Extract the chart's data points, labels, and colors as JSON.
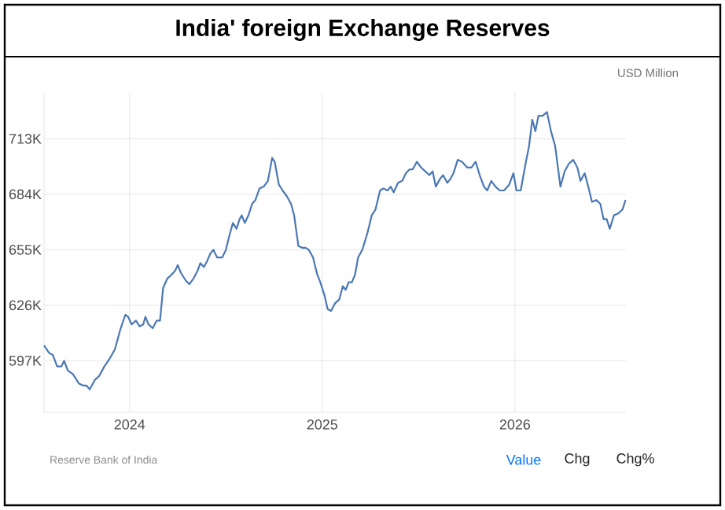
{
  "chart_data": {
    "type": "line",
    "title": "India' foreign Exchange Reserves",
    "ylabel": "USD Million",
    "x": [
      2023.556,
      2023.583,
      2023.602,
      2023.624,
      2023.646,
      2023.66,
      2023.679,
      2023.706,
      2023.738,
      2023.76,
      2023.777,
      2023.793,
      2023.82,
      2023.842,
      2023.869,
      2023.896,
      2023.924,
      2023.951,
      2023.978,
      2023.992,
      2024.011,
      2024.033,
      2024.052,
      2024.071,
      2024.082,
      2024.098,
      2024.12,
      2024.141,
      2024.158,
      2024.174,
      2024.196,
      2024.218,
      2024.236,
      2024.25,
      2024.266,
      2024.291,
      2024.31,
      2024.332,
      2024.353,
      2024.367,
      2024.386,
      2024.402,
      2024.419,
      2024.435,
      2024.454,
      2024.481,
      2024.5,
      2024.517,
      2024.536,
      2024.555,
      2024.571,
      2024.582,
      2024.598,
      2024.617,
      2024.636,
      2024.653,
      2024.674,
      2024.696,
      2024.718,
      2024.74,
      2024.753,
      2024.775,
      2024.794,
      2024.816,
      2024.838,
      2024.854,
      2024.876,
      2024.897,
      2024.914,
      2024.93,
      2024.952,
      2024.974,
      2024.99,
      2025.012,
      2025.028,
      2025.045,
      2025.066,
      2025.088,
      2025.107,
      2025.121,
      2025.137,
      2025.154,
      2025.17,
      2025.186,
      2025.208,
      2025.235,
      2025.257,
      2025.276,
      2025.3,
      2025.317,
      2025.339,
      2025.355,
      2025.371,
      2025.393,
      2025.415,
      2025.434,
      2025.453,
      2025.469,
      2025.491,
      2025.513,
      2025.534,
      2025.556,
      2025.573,
      2025.589,
      2025.611,
      2025.627,
      2025.649,
      2025.665,
      2025.681,
      2025.703,
      2025.725,
      2025.752,
      2025.774,
      2025.796,
      2025.817,
      2025.839,
      2025.856,
      2025.877,
      2025.899,
      2025.921,
      2025.943,
      2025.97,
      2025.992,
      2026.008,
      2026.03,
      2026.057,
      2026.073,
      2026.09,
      2026.106,
      2026.122,
      2026.144,
      2026.166,
      2026.187,
      2026.209,
      2026.236,
      2026.258,
      2026.28,
      2026.302,
      2026.324,
      2026.34,
      2026.362,
      2026.378,
      2026.4,
      2026.422,
      2026.443,
      2026.46,
      2026.476,
      2026.492,
      2026.514,
      2026.536,
      2026.558,
      2026.574
    ],
    "series": [
      {
        "color": "#4a78b4",
        "values": [
          605000,
          601000,
          600000,
          594000,
          594000,
          597000,
          592000,
          590000,
          585000,
          584000,
          584000,
          582000,
          587000,
          589000,
          594000,
          598000,
          603000,
          613000,
          621000,
          620000,
          616000,
          618000,
          615000,
          616000,
          620000,
          616000,
          614000,
          618000,
          618000,
          635000,
          640000,
          642000,
          644000,
          647000,
          643000,
          639000,
          637000,
          640000,
          644000,
          648000,
          646000,
          649000,
          653000,
          655000,
          651000,
          651000,
          655000,
          662000,
          669000,
          666000,
          671000,
          673000,
          669000,
          673000,
          679000,
          681000,
          687000,
          688000,
          691000,
          703000,
          701000,
          689000,
          686000,
          683000,
          679000,
          673000,
          657000,
          656000,
          656000,
          655000,
          651000,
          642000,
          638000,
          631000,
          624000,
          623000,
          627000,
          629000,
          636000,
          634000,
          638000,
          638000,
          642000,
          651000,
          655000,
          664000,
          673000,
          676000,
          686000,
          687000,
          686000,
          688000,
          685000,
          690000,
          691000,
          695000,
          697000,
          697000,
          701000,
          698000,
          696000,
          694000,
          696000,
          688000,
          692000,
          694000,
          690000,
          692000,
          695000,
          702000,
          701000,
          698000,
          698000,
          701000,
          694000,
          688000,
          686000,
          691000,
          688000,
          686000,
          686000,
          689000,
          695000,
          686000,
          686000,
          701000,
          709000,
          723000,
          717000,
          725000,
          725000,
          727000,
          717000,
          709000,
          688000,
          696000,
          700000,
          702000,
          698000,
          691000,
          695000,
          689000,
          680000,
          681000,
          679000,
          671000,
          671000,
          666000,
          673000,
          674000,
          676000,
          681000
        ]
      }
    ],
    "xlim": [
      2023.556,
      2026.576
    ],
    "xticks": [
      2024,
      2025,
      2026
    ],
    "ylim": [
      570000,
      737000
    ],
    "yticks": [
      {
        "value": 597000,
        "label": "597K"
      },
      {
        "value": 626000,
        "label": "626K"
      },
      {
        "value": 655000,
        "label": "655K"
      },
      {
        "value": 684000,
        "label": "684K"
      },
      {
        "value": 713000,
        "label": "713K"
      }
    ],
    "grid": true,
    "marker": "none",
    "line_style": "solid",
    "annotations": [
      "Reserve Bank of India",
      "Value",
      "Chg",
      "Chg%"
    ]
  }
}
